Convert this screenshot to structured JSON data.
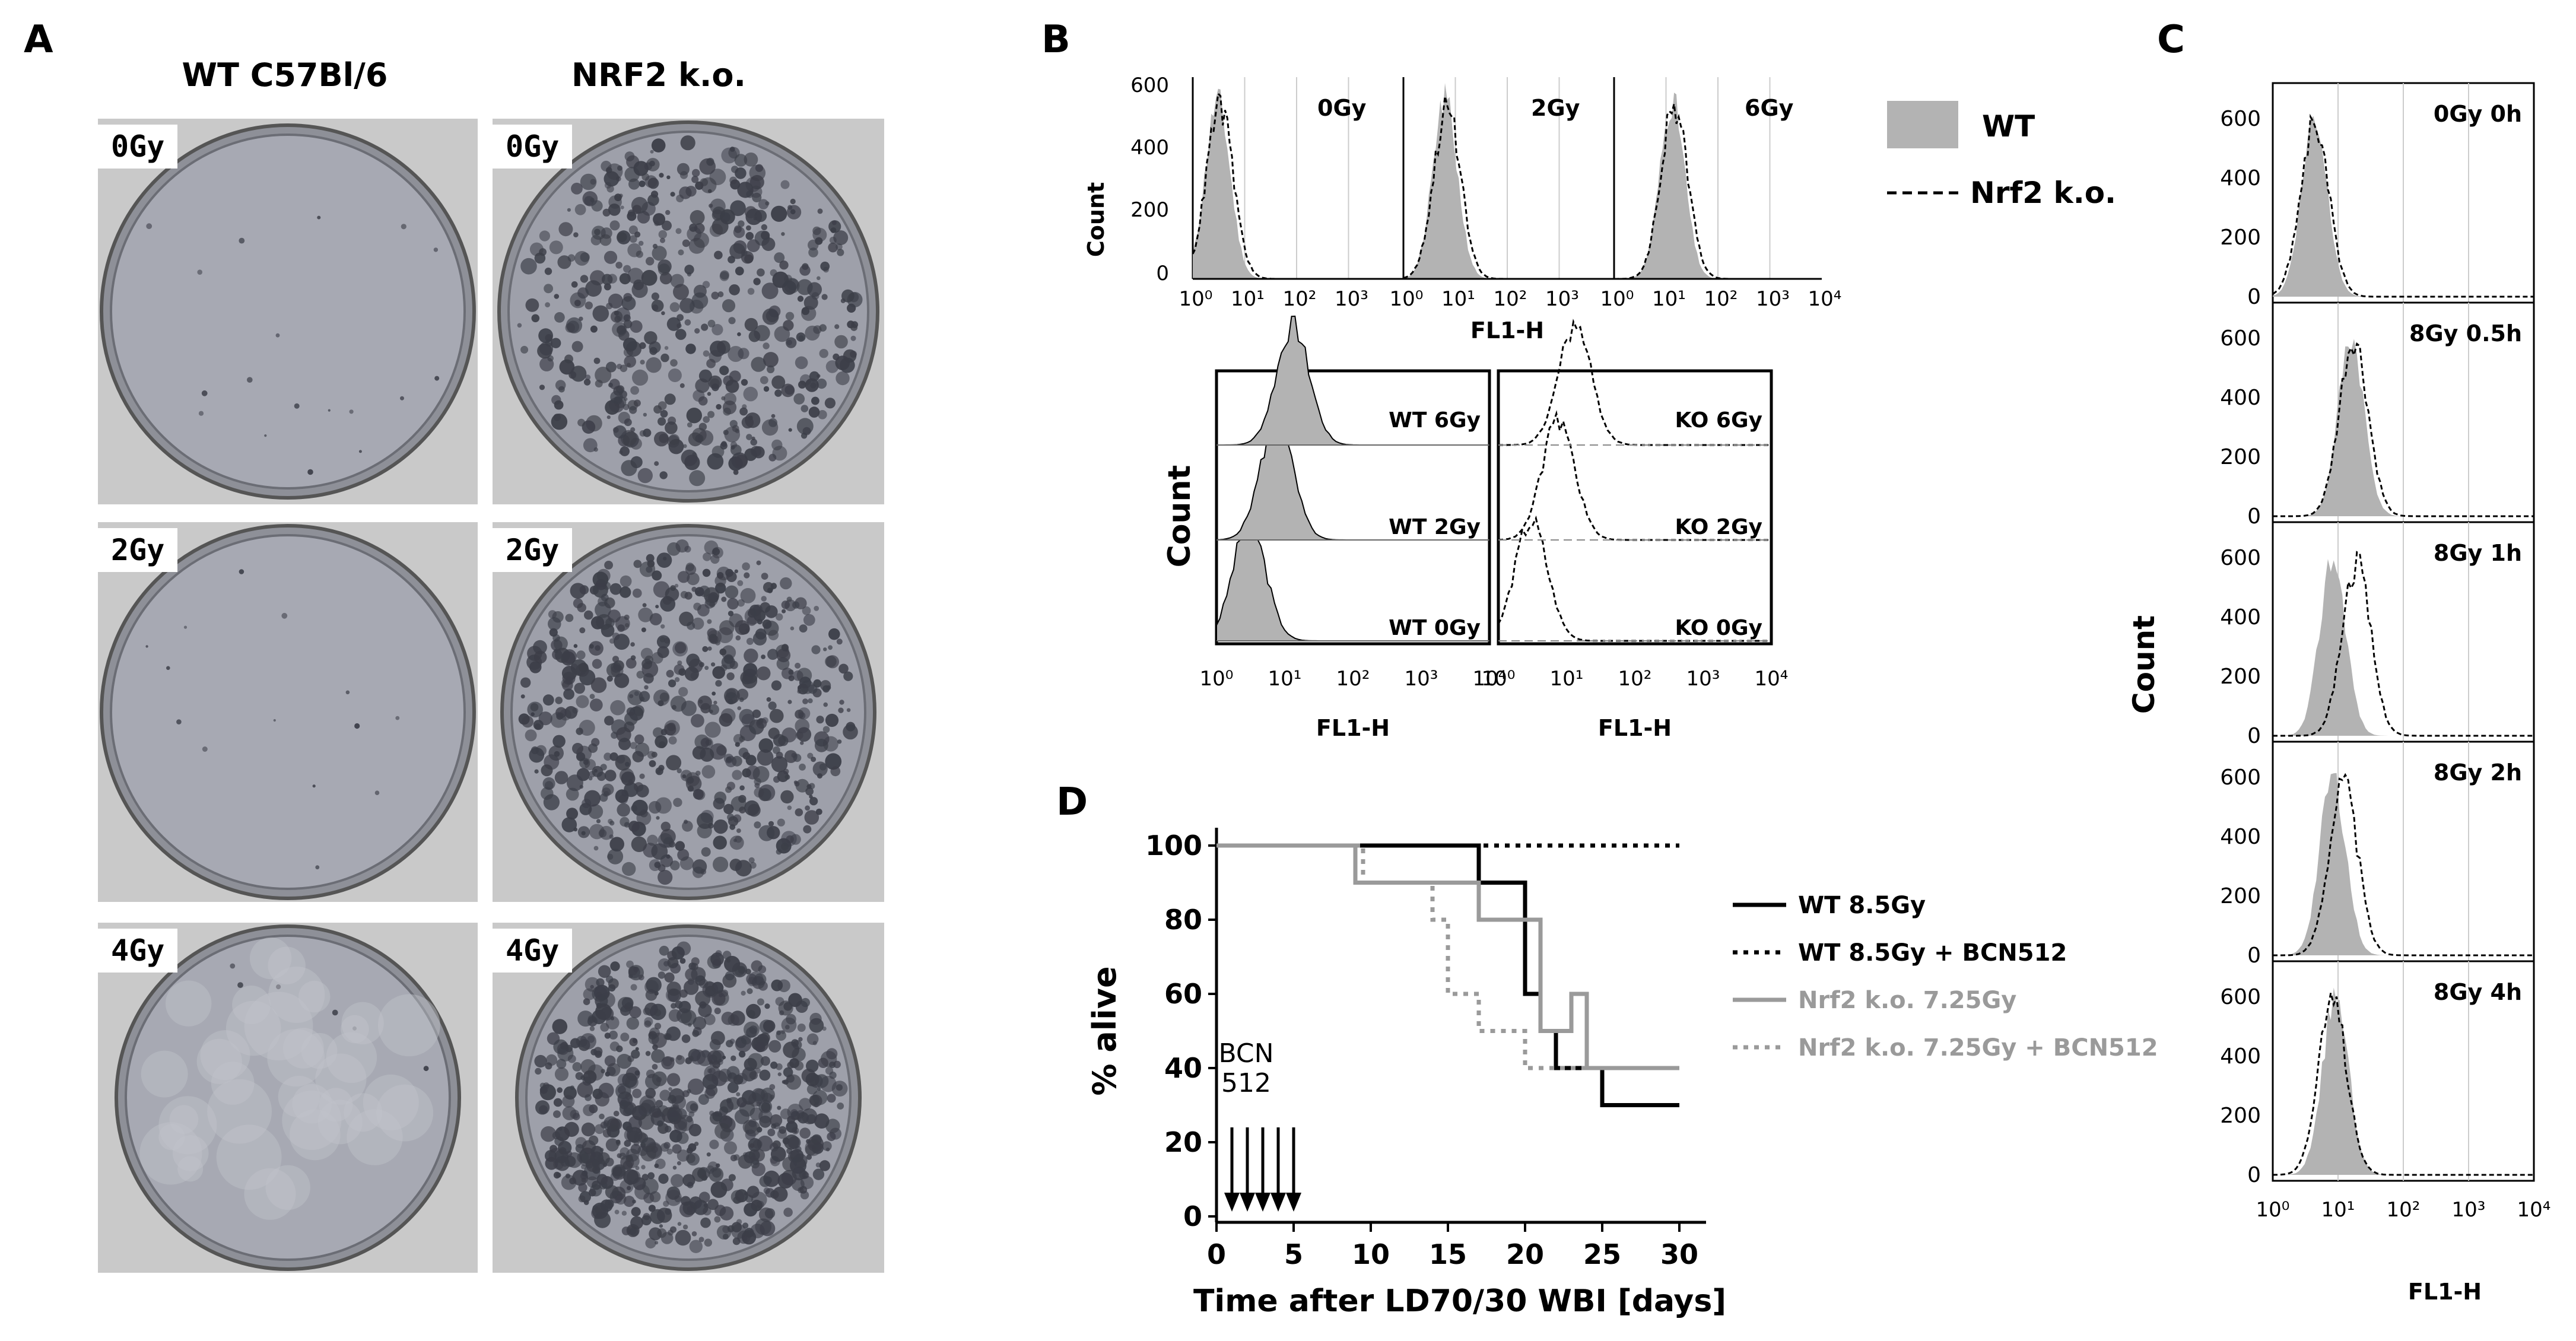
{
  "panel_a": {
    "letter": "A",
    "columns": [
      "WT C57Bl/6",
      "NRF2 k.o."
    ],
    "rows": [
      "0Gy",
      "2Gy",
      "4Gy"
    ]
  },
  "panel_b": {
    "letter": "B",
    "top": {
      "y_label": "Count",
      "y_ticks": [
        "0",
        "200",
        "400",
        "600"
      ],
      "x_label": "FL1-H",
      "doses": [
        "0Gy",
        "2Gy",
        "6Gy"
      ],
      "legend": [
        "WT",
        "Nrf2 k.o."
      ]
    },
    "bottom": {
      "y_label": "Count",
      "x_label": "FL1-H",
      "wt_labels": [
        "WT 6Gy",
        "WT 2Gy",
        "WT 0Gy"
      ],
      "ko_labels": [
        "KO 6Gy",
        "KO 2Gy",
        "KO 0Gy"
      ]
    }
  },
  "panel_c": {
    "letter": "C",
    "y_label": "Count",
    "x_label": "FL1-H",
    "y_ticks": [
      "0",
      "200",
      "400",
      "600"
    ],
    "panels": [
      "0Gy 0h",
      "8Gy 0.5h",
      "8Gy 1h",
      "8Gy 2h",
      "8Gy 4h"
    ]
  },
  "panel_d": {
    "letter": "D",
    "annotation_top": "BCN",
    "annotation_bottom": "512"
  },
  "colors": {
    "wt_fill": "#b3b3b3",
    "dish_bg": "#a8aab4",
    "colony": "#3c3e48",
    "grey_series": "#9a9a9a"
  },
  "chart_data": [
    {
      "type": "line",
      "chart": "survival",
      "xlabel": "Time after LD70/30 WBI [days]",
      "ylabel": "% alive",
      "xlim": [
        0,
        30
      ],
      "ylim": [
        0,
        100
      ],
      "x_ticks": [
        0,
        5,
        10,
        15,
        20,
        25,
        30
      ],
      "y_ticks": [
        0,
        20,
        40,
        60,
        80,
        100
      ],
      "legend_placement": "right",
      "series": [
        {
          "name": "WT 8.5Gy",
          "style": "solid-black",
          "x": [
            0,
            17,
            17,
            20,
            20,
            21,
            21,
            22,
            22,
            25,
            25,
            30
          ],
          "y": [
            100,
            100,
            90,
            90,
            60,
            60,
            50,
            50,
            40,
            40,
            30,
            30
          ]
        },
        {
          "name": "WT 8.5Gy + BCN512",
          "style": "dotted-black",
          "x": [
            0,
            30
          ],
          "y": [
            100,
            100
          ]
        },
        {
          "name": "Nrf2 k.o. 7.25Gy",
          "style": "solid-grey",
          "x": [
            0,
            9,
            9,
            12,
            12,
            17,
            17,
            21,
            21,
            23,
            23,
            24,
            24,
            30
          ],
          "y": [
            100,
            100,
            90,
            90,
            90,
            90,
            80,
            80,
            50,
            50,
            60,
            60,
            40,
            40
          ]
        },
        {
          "name": "Nrf2 k.o. 7.25Gy + BCN512",
          "style": "dotted-grey",
          "x": [
            0,
            9.5,
            9.5,
            14,
            14,
            15,
            15,
            17,
            17,
            19,
            19,
            20,
            20,
            22,
            22,
            30
          ],
          "y": [
            100,
            100,
            90,
            90,
            80,
            80,
            60,
            60,
            50,
            50,
            50,
            50,
            40,
            40,
            40,
            40
          ]
        }
      ]
    },
    {
      "type": "area",
      "chart": "flow-histograms",
      "xlabel": "FL1-H",
      "ylabel": "Count",
      "x_scale": "log",
      "xlim": [
        1,
        10000
      ],
      "ylim": [
        0,
        600
      ],
      "x_tick_labels": [
        "10⁰",
        "10¹",
        "10²",
        "10³",
        "10⁴"
      ]
    }
  ]
}
